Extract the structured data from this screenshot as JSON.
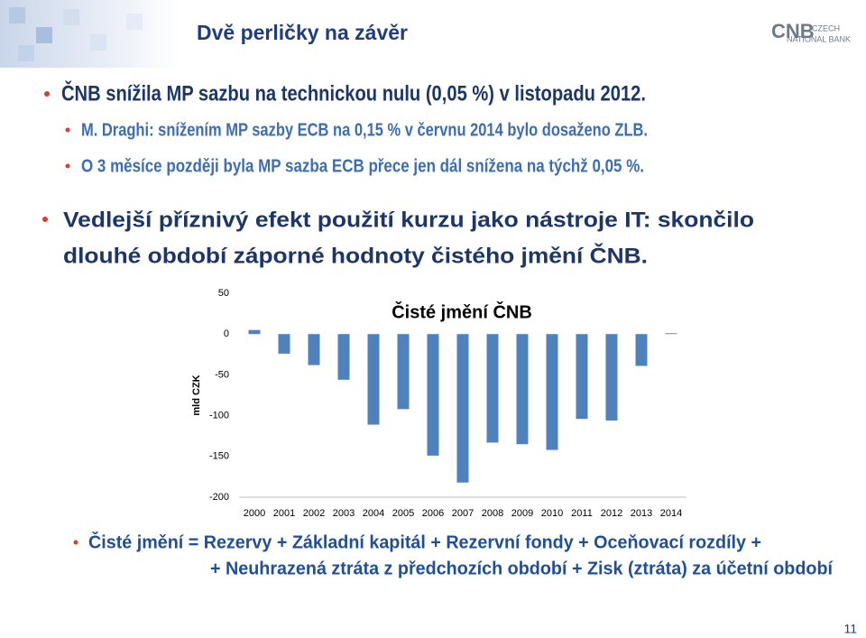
{
  "header": {
    "title": "Dvě perličky na závěr",
    "logo": {
      "mark": "CNB",
      "line1": "CZECH",
      "line2": "NATIONAL BANK"
    }
  },
  "bullets": [
    "ČNB snížila MP sazbu na technickou nulu (0,05 %) v listopadu 2012.",
    "M. Draghi: snížením MP sazby ECB na 0,15 % v červnu 2014 bylo dosaženo ZLB.",
    "O 3 měsíce později byla MP sazba ECB přece jen dál snížena na týchž 0,05 %.",
    [
      "Vedlejší příznivý efekt použití kurzu jako nástroje IT: skončilo",
      "dlouhé období záporné hodnoty čistého jmění ČNB."
    ]
  ],
  "chart_data": {
    "type": "bar",
    "title": "Čisté jmění ČNB",
    "y_label": "mld CZK",
    "categories": [
      "2000",
      "2001",
      "2002",
      "2003",
      "2004",
      "2005",
      "2006",
      "2007",
      "2008",
      "2009",
      "2010",
      "2011",
      "2012",
      "2013",
      "2014"
    ],
    "values": [
      5,
      -24,
      -38,
      -56,
      -111,
      -92,
      -149,
      -182,
      -133,
      -135,
      -142,
      -104,
      -106,
      -39,
      1
    ],
    "color": "#4f81bd",
    "ylim": [
      -200,
      50
    ],
    "yticks": [
      50,
      0,
      -50,
      -100,
      -150,
      -200
    ],
    "grid": false
  },
  "footer": {
    "formula": [
      "Čisté jmění = Rezervy + Základní kapitál + Rezervní fondy + Oceňovací rozdíly +",
      "+ Neuhrazená ztráta z předchozích období + Zisk (ztráta) za účetní období"
    ],
    "page": "11"
  }
}
